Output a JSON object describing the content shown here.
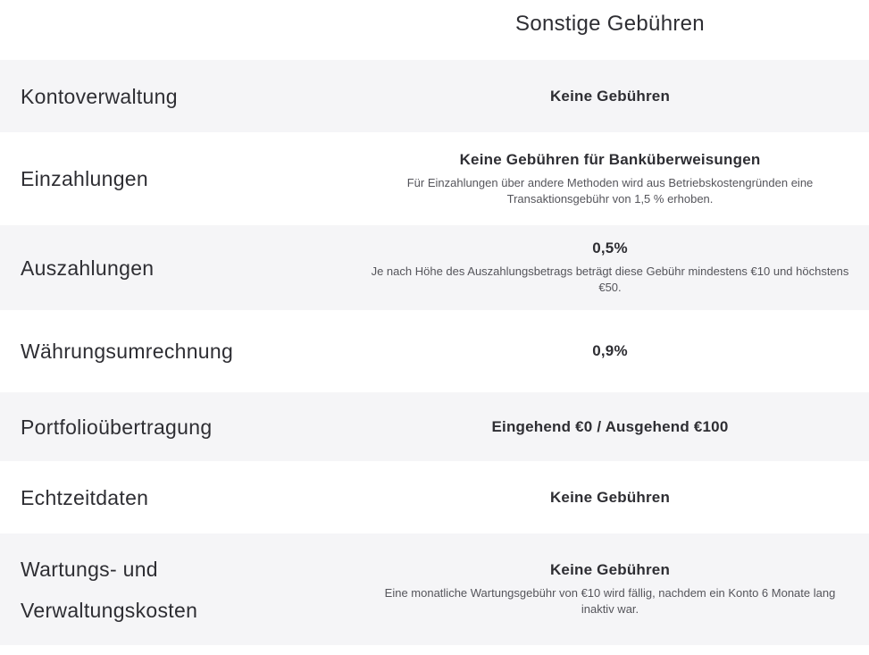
{
  "title": "Sonstige Gebühren",
  "colors": {
    "page_bg": "#ffffff",
    "row_alt_bg": "#f5f5f7",
    "text_primary": "#2e2e33",
    "text_secondary": "#55555b"
  },
  "rows": [
    {
      "label": "Kontoverwaltung",
      "value": "Keine Gebühren",
      "note": ""
    },
    {
      "label": "Einzahlungen",
      "value": "Keine Gebühren für Banküberweisungen",
      "note": "Für Einzahlungen über andere Methoden wird aus Betriebskostengründen eine Transaktionsgebühr von 1,5 % erhoben."
    },
    {
      "label": "Auszahlungen",
      "value": "0,5%",
      "note": "Je nach Höhe des Auszahlungsbetrags beträgt diese Gebühr mindestens €10 und höchstens €50."
    },
    {
      "label": "Währungsumrechnung",
      "value": "0,9%",
      "note": ""
    },
    {
      "label": "Portfolioübertragung",
      "value": "Eingehend €0 / Ausgehend €100",
      "note": ""
    },
    {
      "label": "Echtzeitdaten",
      "value": "Keine Gebühren",
      "note": ""
    },
    {
      "label": "Wartungs- und Verwaltungskosten",
      "value": "Keine Gebühren",
      "note": "Eine monatliche Wartungsgebühr von €10 wird fällig, nachdem ein Konto 6 Monate lang inaktiv war."
    }
  ]
}
